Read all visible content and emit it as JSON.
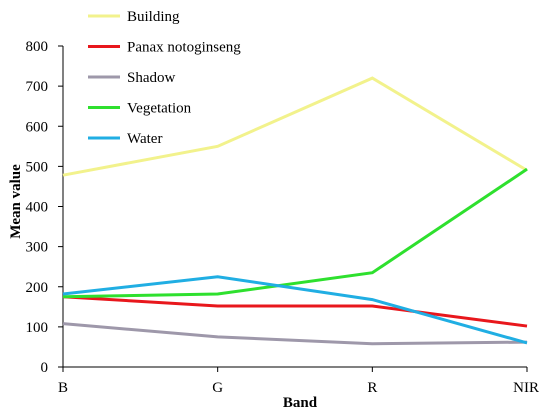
{
  "chart_data": {
    "type": "line",
    "title": "",
    "xlabel": "Band",
    "ylabel": "Mean  value",
    "categories": [
      "B",
      "G",
      "R",
      "NIR"
    ],
    "ylim": [
      0,
      800
    ],
    "yticks": [
      0,
      100,
      200,
      300,
      400,
      500,
      600,
      700,
      800
    ],
    "grid": false,
    "legend_position": "top-center",
    "series": [
      {
        "name": "Building",
        "color": "#f2f28c",
        "values": [
          478,
          550,
          720,
          490
        ]
      },
      {
        "name": "Panax notoginseng",
        "color": "#e8171c",
        "values": [
          175,
          152,
          152,
          102
        ]
      },
      {
        "name": "Shadow",
        "color": "#9e98aa",
        "values": [
          108,
          75,
          58,
          62
        ]
      },
      {
        "name": "Vegetation",
        "color": "#2ee02e",
        "values": [
          175,
          182,
          235,
          493
        ]
      },
      {
        "name": "Water",
        "color": "#20aee3",
        "values": [
          182,
          225,
          168,
          60
        ]
      }
    ]
  }
}
